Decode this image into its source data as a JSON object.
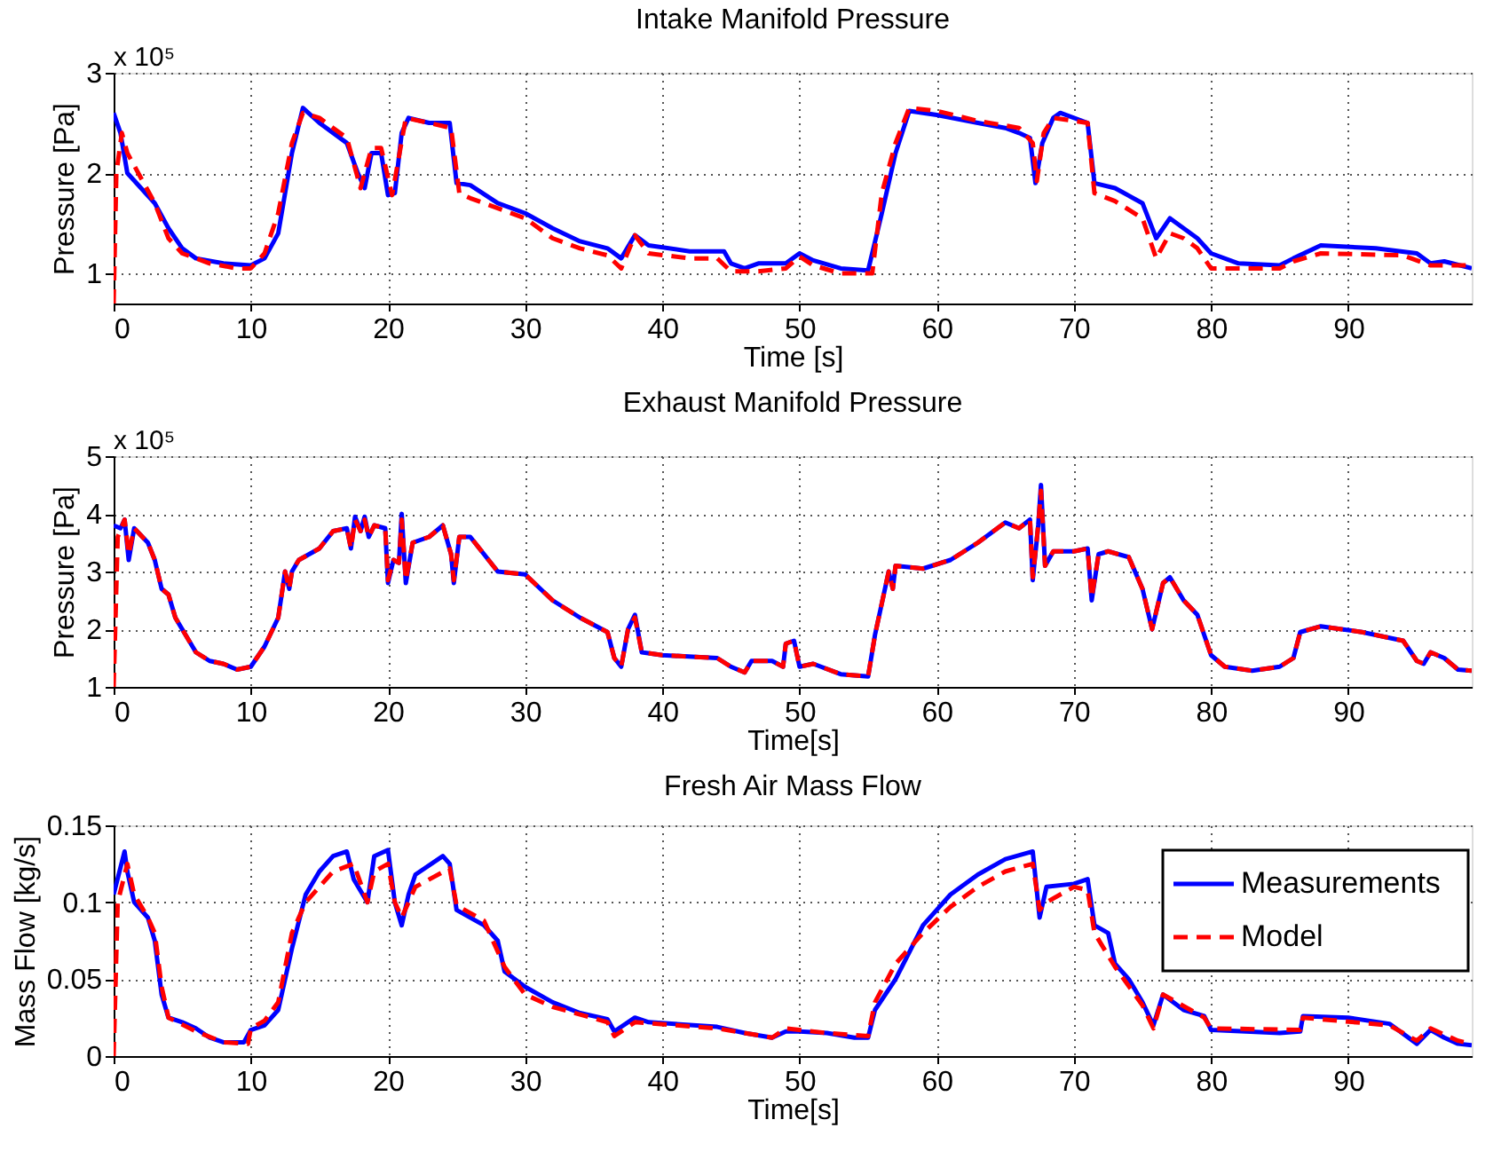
{
  "chart_data": [
    {
      "type": "line",
      "title": "Intake Manifold Pressure",
      "xlabel": "Time [s]",
      "ylabel": "Pressure [Pa]",
      "annotations": [
        "x 10⁵"
      ],
      "xlim": [
        0,
        99
      ],
      "xticks": [
        0,
        10,
        20,
        30,
        40,
        50,
        60,
        70,
        80,
        90
      ],
      "ylim": [
        0.7,
        3
      ],
      "yticks": [
        1,
        2,
        3
      ],
      "grid": true,
      "legend": false,
      "series": [
        {
          "color": "#0000ff",
          "line_style": "solid",
          "x": [
            0,
            0.5,
            1,
            2,
            3,
            4,
            5,
            6,
            8,
            10,
            11,
            12,
            13,
            13.8,
            15,
            17,
            17.8,
            18.3,
            18.8,
            19.5,
            20,
            20.5,
            21,
            21.5,
            23,
            24.5,
            25,
            26,
            28,
            30,
            32,
            34,
            36,
            37,
            38,
            39,
            42,
            44.5,
            45,
            46,
            47,
            49,
            50,
            51,
            53,
            55,
            56,
            57,
            58,
            60,
            63,
            65,
            66,
            66.8,
            67.2,
            67.7,
            68.5,
            69,
            71,
            71.5,
            73,
            75,
            76,
            77,
            78,
            79,
            80,
            82,
            85,
            86,
            88,
            92,
            95,
            96,
            97,
            99
          ],
          "values": [
            2.6,
            2.4,
            2.0,
            1.85,
            1.7,
            1.45,
            1.25,
            1.15,
            1.1,
            1.08,
            1.15,
            1.4,
            2.2,
            2.65,
            2.5,
            2.3,
            2.0,
            1.85,
            2.2,
            2.2,
            1.78,
            1.8,
            2.4,
            2.55,
            2.5,
            2.5,
            1.9,
            1.88,
            1.7,
            1.6,
            1.45,
            1.32,
            1.25,
            1.15,
            1.38,
            1.28,
            1.22,
            1.22,
            1.1,
            1.05,
            1.1,
            1.1,
            1.2,
            1.13,
            1.05,
            1.03,
            1.6,
            2.2,
            2.62,
            2.58,
            2.5,
            2.45,
            2.4,
            2.35,
            1.9,
            2.3,
            2.55,
            2.6,
            2.5,
            1.9,
            1.85,
            1.7,
            1.35,
            1.55,
            1.45,
            1.35,
            1.2,
            1.1,
            1.08,
            1.15,
            1.28,
            1.25,
            1.2,
            1.1,
            1.12,
            1.05
          ]
        },
        {
          "color": "#ff0000",
          "line_style": "dashed",
          "x": [
            0,
            0.2,
            0.6,
            1,
            2,
            3,
            4,
            5,
            7,
            9,
            10,
            11,
            12,
            13,
            13.8,
            15,
            17,
            18,
            18.8,
            19.5,
            20.3,
            21.3,
            23,
            24.6,
            25.2,
            26,
            28,
            30,
            32,
            34,
            36,
            37,
            38,
            39,
            42,
            44,
            45,
            47,
            49,
            50,
            51,
            53,
            55.3,
            56,
            57,
            58,
            60,
            63,
            66,
            67,
            67.3,
            67.8,
            68.5,
            71,
            71.5,
            73,
            75,
            76,
            77,
            78,
            79,
            80,
            85,
            86,
            88,
            94,
            96,
            99
          ],
          "values": [
            0.7,
            2.0,
            2.4,
            2.2,
            1.95,
            1.7,
            1.35,
            1.2,
            1.1,
            1.05,
            1.05,
            1.2,
            1.6,
            2.3,
            2.6,
            2.55,
            2.35,
            1.85,
            2.25,
            2.25,
            1.78,
            2.55,
            2.5,
            2.45,
            1.8,
            1.75,
            1.65,
            1.55,
            1.35,
            1.25,
            1.18,
            1.05,
            1.38,
            1.2,
            1.15,
            1.15,
            1.02,
            1.02,
            1.05,
            1.17,
            1.08,
            1.0,
            1.0,
            1.8,
            2.3,
            2.65,
            2.62,
            2.52,
            2.45,
            2.3,
            1.92,
            2.4,
            2.55,
            2.5,
            1.8,
            1.72,
            1.55,
            1.15,
            1.4,
            1.35,
            1.25,
            1.05,
            1.05,
            1.12,
            1.2,
            1.18,
            1.08,
            1.08
          ]
        }
      ]
    },
    {
      "type": "line",
      "title": "Exhaust Manifold Pressure",
      "xlabel": "Time[s]",
      "ylabel": "Pressure [Pa]",
      "annotations": [
        "x 10⁵"
      ],
      "xlim": [
        0,
        99
      ],
      "xticks": [
        0,
        10,
        20,
        30,
        40,
        50,
        60,
        70,
        80,
        90
      ],
      "ylim": [
        1,
        5
      ],
      "yticks": [
        1,
        2,
        3,
        4,
        5
      ],
      "grid": true,
      "legend": false,
      "series": [
        {
          "color": "#0000ff",
          "line_style": "solid",
          "x": [
            0,
            0.5,
            0.8,
            1.1,
            1.5,
            2.5,
            3,
            3.5,
            4,
            4.5,
            5,
            6,
            7,
            8,
            9,
            10,
            11,
            12,
            12.5,
            12.8,
            13,
            13.5,
            15,
            16,
            17,
            17.3,
            17.6,
            18,
            18.3,
            18.6,
            19,
            19.8,
            20,
            20.4,
            20.8,
            21,
            21.3,
            21.8,
            23,
            24,
            24.6,
            24.8,
            25.2,
            26,
            28,
            30,
            32,
            34,
            36,
            36.5,
            37,
            37.5,
            38,
            38.5,
            40,
            44,
            45,
            46,
            46.5,
            48,
            48.8,
            49,
            49.6,
            50,
            51,
            53,
            55,
            55.5,
            56.5,
            56.8,
            57,
            59,
            61,
            63,
            65,
            66,
            66.8,
            67,
            67.4,
            67.6,
            67.9,
            68.5,
            70,
            71,
            71.3,
            71.8,
            72.5,
            74,
            75,
            75.7,
            76.5,
            77,
            78,
            79,
            80,
            81,
            83,
            85,
            86,
            86.5,
            88,
            91,
            94,
            95,
            95.5,
            96,
            97,
            98,
            99
          ],
          "values": [
            3.8,
            3.75,
            3.9,
            3.2,
            3.75,
            3.5,
            3.2,
            2.7,
            2.6,
            2.2,
            2.0,
            1.6,
            1.45,
            1.4,
            1.3,
            1.35,
            1.7,
            2.2,
            3.0,
            2.7,
            3.0,
            3.2,
            3.4,
            3.7,
            3.75,
            3.4,
            3.95,
            3.7,
            3.95,
            3.6,
            3.8,
            3.75,
            2.8,
            3.2,
            3.15,
            4.0,
            2.8,
            3.5,
            3.6,
            3.8,
            3.3,
            2.8,
            3.6,
            3.6,
            3.0,
            2.95,
            2.5,
            2.2,
            1.95,
            1.5,
            1.35,
            2.0,
            2.25,
            1.6,
            1.55,
            1.5,
            1.35,
            1.25,
            1.45,
            1.45,
            1.35,
            1.75,
            1.8,
            1.35,
            1.4,
            1.22,
            1.18,
            1.9,
            3.0,
            2.7,
            3.1,
            3.05,
            3.2,
            3.5,
            3.85,
            3.75,
            3.9,
            2.85,
            3.8,
            4.5,
            3.1,
            3.35,
            3.35,
            3.4,
            2.5,
            3.3,
            3.35,
            3.25,
            2.7,
            2.0,
            2.8,
            2.9,
            2.5,
            2.25,
            1.55,
            1.35,
            1.28,
            1.35,
            1.5,
            1.95,
            2.05,
            1.95,
            1.8,
            1.45,
            1.4,
            1.6,
            1.5,
            1.3,
            1.28
          ]
        },
        {
          "color": "#ff0000",
          "line_style": "dashed",
          "x": [
            0,
            0.3,
            0.8,
            1.1,
            1.5,
            2.5,
            3,
            3.5,
            4,
            4.5,
            5,
            6,
            7,
            8,
            9,
            10,
            11,
            12,
            12.5,
            12.8,
            13,
            13.5,
            15,
            16,
            17,
            17.3,
            17.6,
            18,
            18.3,
            18.6,
            19,
            19.8,
            20,
            20.4,
            20.8,
            21,
            21.3,
            21.8,
            23,
            24,
            24.6,
            24.8,
            25.2,
            26,
            28,
            30,
            32,
            34,
            36,
            36.5,
            37,
            37.5,
            38,
            38.5,
            40,
            44,
            45,
            46,
            46.5,
            48,
            48.8,
            49,
            49.6,
            50,
            51,
            53,
            55,
            55.5,
            56.5,
            56.8,
            57,
            59,
            61,
            63,
            65,
            66,
            66.8,
            67,
            67.4,
            67.6,
            67.9,
            68.5,
            70,
            71,
            71.3,
            71.8,
            72.5,
            74,
            75,
            75.7,
            76.5,
            77,
            78,
            79,
            80,
            81,
            83,
            85,
            86,
            86.5,
            88,
            91,
            94,
            95,
            95.5,
            96,
            97,
            98,
            99
          ],
          "values": [
            1.0,
            3.6,
            3.9,
            3.3,
            3.75,
            3.5,
            3.2,
            2.7,
            2.6,
            2.2,
            2.0,
            1.6,
            1.45,
            1.4,
            1.3,
            1.35,
            1.7,
            2.2,
            3.0,
            2.7,
            3.0,
            3.2,
            3.4,
            3.7,
            3.75,
            3.4,
            3.9,
            3.7,
            3.9,
            3.6,
            3.8,
            3.75,
            2.85,
            3.2,
            3.15,
            3.9,
            2.85,
            3.5,
            3.6,
            3.8,
            3.3,
            2.85,
            3.6,
            3.6,
            3.0,
            2.95,
            2.5,
            2.2,
            1.95,
            1.5,
            1.35,
            2.0,
            2.2,
            1.6,
            1.55,
            1.5,
            1.35,
            1.25,
            1.45,
            1.45,
            1.35,
            1.75,
            1.8,
            1.35,
            1.4,
            1.22,
            1.18,
            1.9,
            3.0,
            2.7,
            3.1,
            3.05,
            3.2,
            3.5,
            3.85,
            3.75,
            3.9,
            2.9,
            3.8,
            4.4,
            3.1,
            3.35,
            3.35,
            3.4,
            2.55,
            3.3,
            3.35,
            3.25,
            2.7,
            2.0,
            2.8,
            2.9,
            2.5,
            2.25,
            1.55,
            1.35,
            1.28,
            1.35,
            1.5,
            1.95,
            2.05,
            1.95,
            1.8,
            1.45,
            1.4,
            1.6,
            1.5,
            1.3,
            1.28
          ]
        }
      ]
    },
    {
      "type": "line",
      "title": "Fresh Air Mass Flow",
      "xlabel": "Time[s]",
      "ylabel": "Mass Flow [kg/s]",
      "xlim": [
        0,
        99
      ],
      "xticks": [
        0,
        10,
        20,
        30,
        40,
        50,
        60,
        70,
        80,
        90
      ],
      "ylim": [
        0,
        0.15
      ],
      "yticks": [
        0,
        0.05,
        0.1,
        0.15
      ],
      "grid": true,
      "legend": "top right",
      "series": [
        {
          "name": "Measurements",
          "color": "#0000ff",
          "line_style": "solid",
          "x": [
            0,
            0.8,
            1,
            1.5,
            2.5,
            3,
            3.5,
            4,
            5,
            6,
            7,
            8,
            9.5,
            10,
            11,
            12,
            13,
            14,
            15,
            16,
            17,
            17.5,
            18.5,
            19,
            20,
            20.5,
            21,
            21.5,
            22,
            24,
            24.5,
            25,
            27,
            28,
            28.5,
            30,
            32,
            34,
            36,
            36.5,
            38,
            39,
            44,
            46,
            48,
            49,
            50,
            52,
            54,
            55,
            55.5,
            57,
            59,
            61,
            63,
            65,
            67,
            67.5,
            68,
            70,
            71,
            71.5,
            72.5,
            73,
            74,
            75,
            75.8,
            76.5,
            78,
            79.5,
            80,
            85,
            86.5,
            86.7,
            90,
            93,
            95,
            96,
            97,
            98,
            99
          ],
          "values": [
            0.105,
            0.133,
            0.12,
            0.1,
            0.09,
            0.075,
            0.04,
            0.025,
            0.022,
            0.018,
            0.012,
            0.009,
            0.009,
            0.017,
            0.02,
            0.03,
            0.07,
            0.105,
            0.12,
            0.13,
            0.133,
            0.115,
            0.1,
            0.13,
            0.134,
            0.1,
            0.085,
            0.105,
            0.118,
            0.13,
            0.125,
            0.095,
            0.085,
            0.075,
            0.055,
            0.045,
            0.035,
            0.028,
            0.024,
            0.016,
            0.025,
            0.022,
            0.019,
            0.015,
            0.012,
            0.016,
            0.016,
            0.015,
            0.012,
            0.012,
            0.03,
            0.05,
            0.085,
            0.105,
            0.118,
            0.128,
            0.133,
            0.09,
            0.11,
            0.112,
            0.115,
            0.085,
            0.08,
            0.06,
            0.05,
            0.035,
            0.02,
            0.04,
            0.03,
            0.026,
            0.017,
            0.015,
            0.016,
            0.026,
            0.025,
            0.021,
            0.008,
            0.017,
            0.012,
            0.008,
            0.007
          ]
        },
        {
          "name": "Model",
          "color": "#ff0000",
          "line_style": "dashed",
          "x": [
            0,
            0.3,
            1,
            1.5,
            2.5,
            3,
            3.5,
            4,
            6,
            8,
            9.8,
            10,
            11,
            12,
            13,
            14,
            16,
            17.5,
            18.5,
            19,
            20,
            20.5,
            21,
            22,
            24.5,
            25,
            27,
            28.5,
            30,
            32,
            36,
            36.5,
            38,
            44,
            48,
            49,
            52,
            55,
            55.5,
            57,
            59,
            61,
            63,
            65,
            67,
            67.5,
            68,
            70,
            71,
            71.5,
            73,
            75,
            75.8,
            76.5,
            79.5,
            80,
            86.5,
            86.7,
            93,
            95,
            96,
            98,
            99
          ],
          "values": [
            0.0,
            0.1,
            0.125,
            0.105,
            0.09,
            0.08,
            0.045,
            0.025,
            0.016,
            0.009,
            0.008,
            0.018,
            0.023,
            0.035,
            0.08,
            0.1,
            0.12,
            0.125,
            0.1,
            0.12,
            0.125,
            0.1,
            0.09,
            0.11,
            0.122,
            0.098,
            0.088,
            0.058,
            0.04,
            0.032,
            0.022,
            0.013,
            0.022,
            0.018,
            0.012,
            0.018,
            0.015,
            0.013,
            0.035,
            0.06,
            0.08,
            0.097,
            0.11,
            0.12,
            0.125,
            0.095,
            0.1,
            0.11,
            0.108,
            0.08,
            0.058,
            0.033,
            0.018,
            0.04,
            0.025,
            0.018,
            0.017,
            0.025,
            0.02,
            0.01,
            0.018,
            0.01,
            0.008
          ]
        }
      ]
    }
  ]
}
